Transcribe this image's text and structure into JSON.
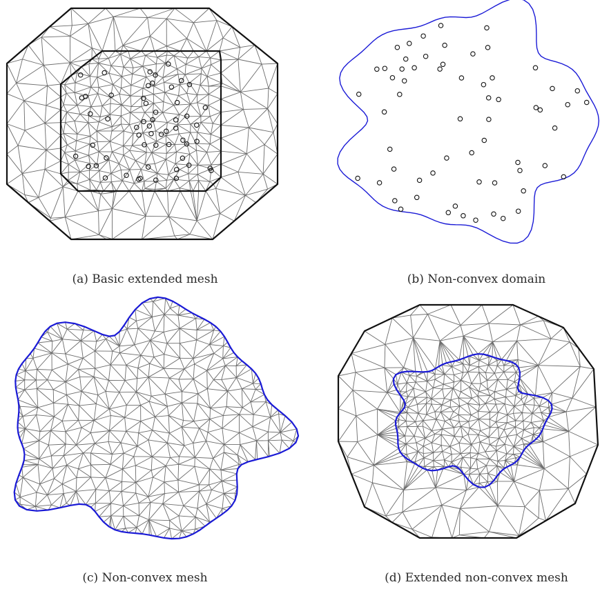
{
  "panels": [
    {
      "id": "a",
      "caption": "(a) Basic extended mesh"
    },
    {
      "id": "b",
      "caption": "(b) Non-convex domain"
    },
    {
      "id": "c",
      "caption": "(c) Non-convex mesh"
    },
    {
      "id": "d",
      "caption": "(d) Extended non-convex mesh"
    }
  ],
  "colors": {
    "mesh": "#6b6b6b",
    "boundary": "#111111",
    "domain": "#1a1ad6"
  }
}
